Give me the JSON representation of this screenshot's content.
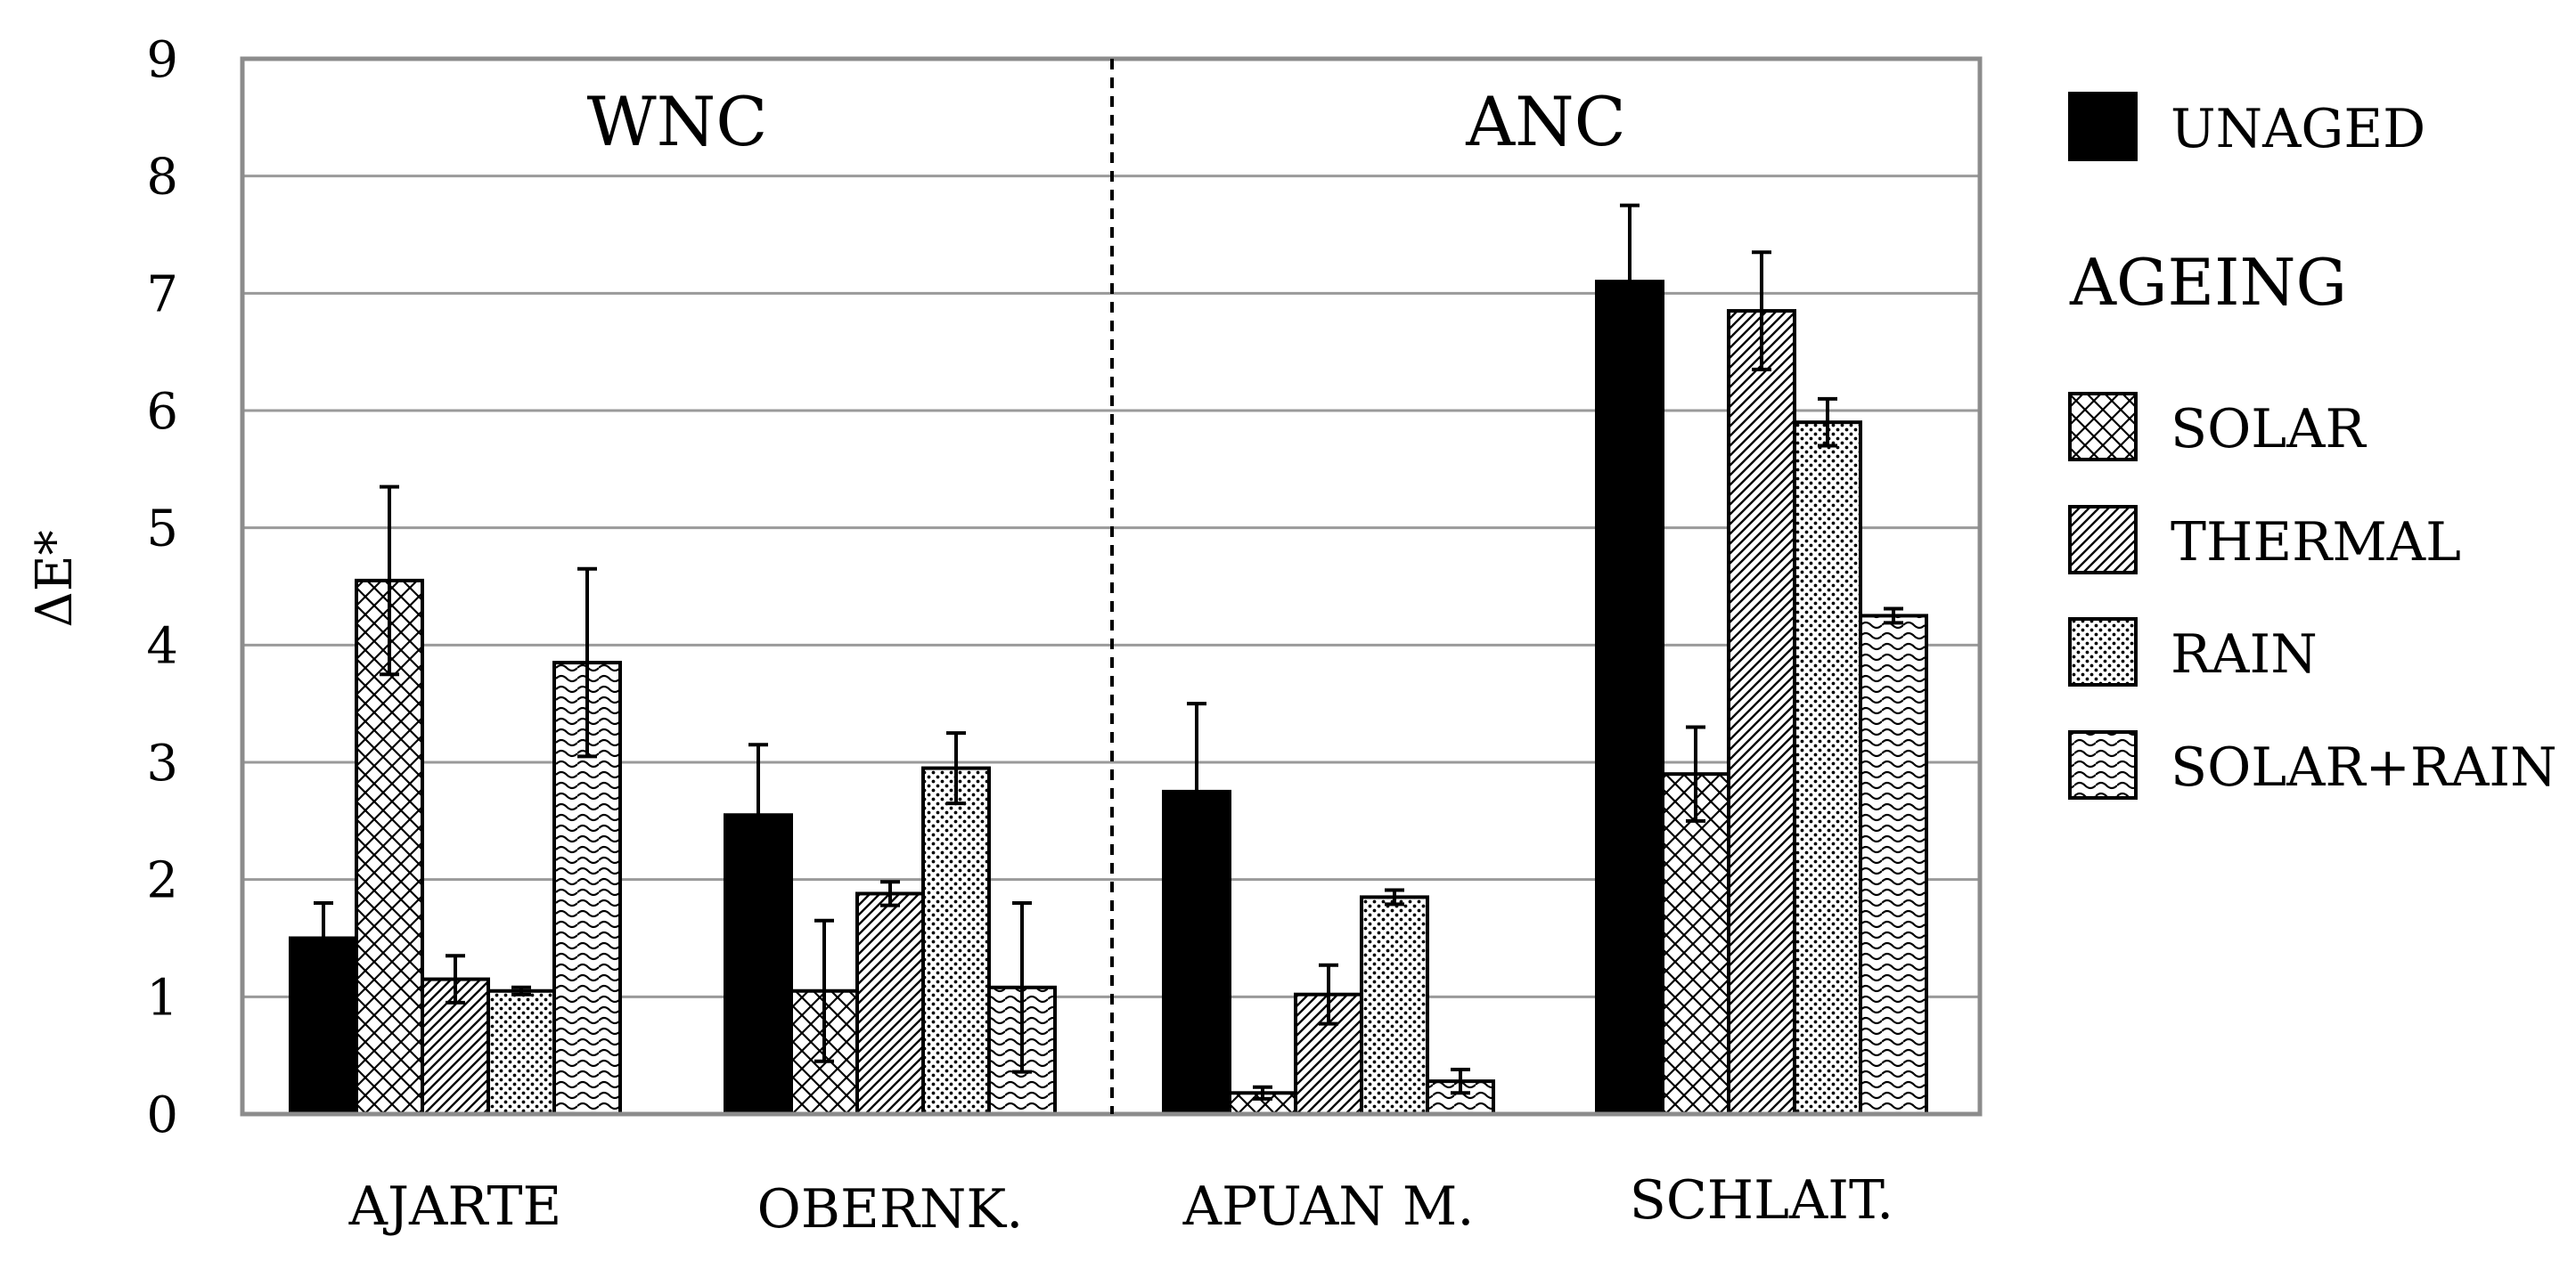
{
  "chart_data": {
    "type": "bar",
    "ylabel": "ΔE*",
    "ylim": [
      0,
      9
    ],
    "yticks": [
      "0",
      "1",
      "2",
      "3",
      "4",
      "5",
      "6",
      "7",
      "8",
      "9"
    ],
    "grid": true,
    "groups": [
      {
        "label": "WNC",
        "categories": [
          0,
          1
        ]
      },
      {
        "label": "ANC",
        "categories": [
          2,
          3
        ]
      }
    ],
    "categories": [
      "AJARTE",
      "OBERNK.",
      "APUAN M.",
      "SCHLAIT."
    ],
    "series": [
      {
        "name": "UNAGED",
        "pattern": "solid",
        "values": [
          1.5,
          2.55,
          2.75,
          7.1
        ],
        "errors": [
          0.3,
          0.6,
          0.75,
          0.65
        ]
      },
      {
        "name": "SOLAR",
        "pattern": "crosshatch",
        "values": [
          4.55,
          1.05,
          0.18,
          2.9
        ],
        "errors": [
          0.8,
          0.6,
          0.05,
          0.4
        ]
      },
      {
        "name": "THERMAL",
        "pattern": "diagonal",
        "values": [
          1.15,
          1.88,
          1.02,
          6.85
        ],
        "errors": [
          0.2,
          0.1,
          0.25,
          0.5
        ]
      },
      {
        "name": "RAIN",
        "pattern": "dots",
        "values": [
          1.05,
          2.95,
          1.85,
          5.9
        ],
        "errors": [
          0.03,
          0.3,
          0.06,
          0.2
        ]
      },
      {
        "name": "SOLAR+RAIN",
        "pattern": "waves",
        "values": [
          3.85,
          1.08,
          0.28,
          4.25
        ],
        "errors": [
          0.8,
          0.72,
          0.1,
          0.06
        ]
      }
    ],
    "legend": {
      "placement": "right",
      "heading": "AGEING"
    }
  }
}
